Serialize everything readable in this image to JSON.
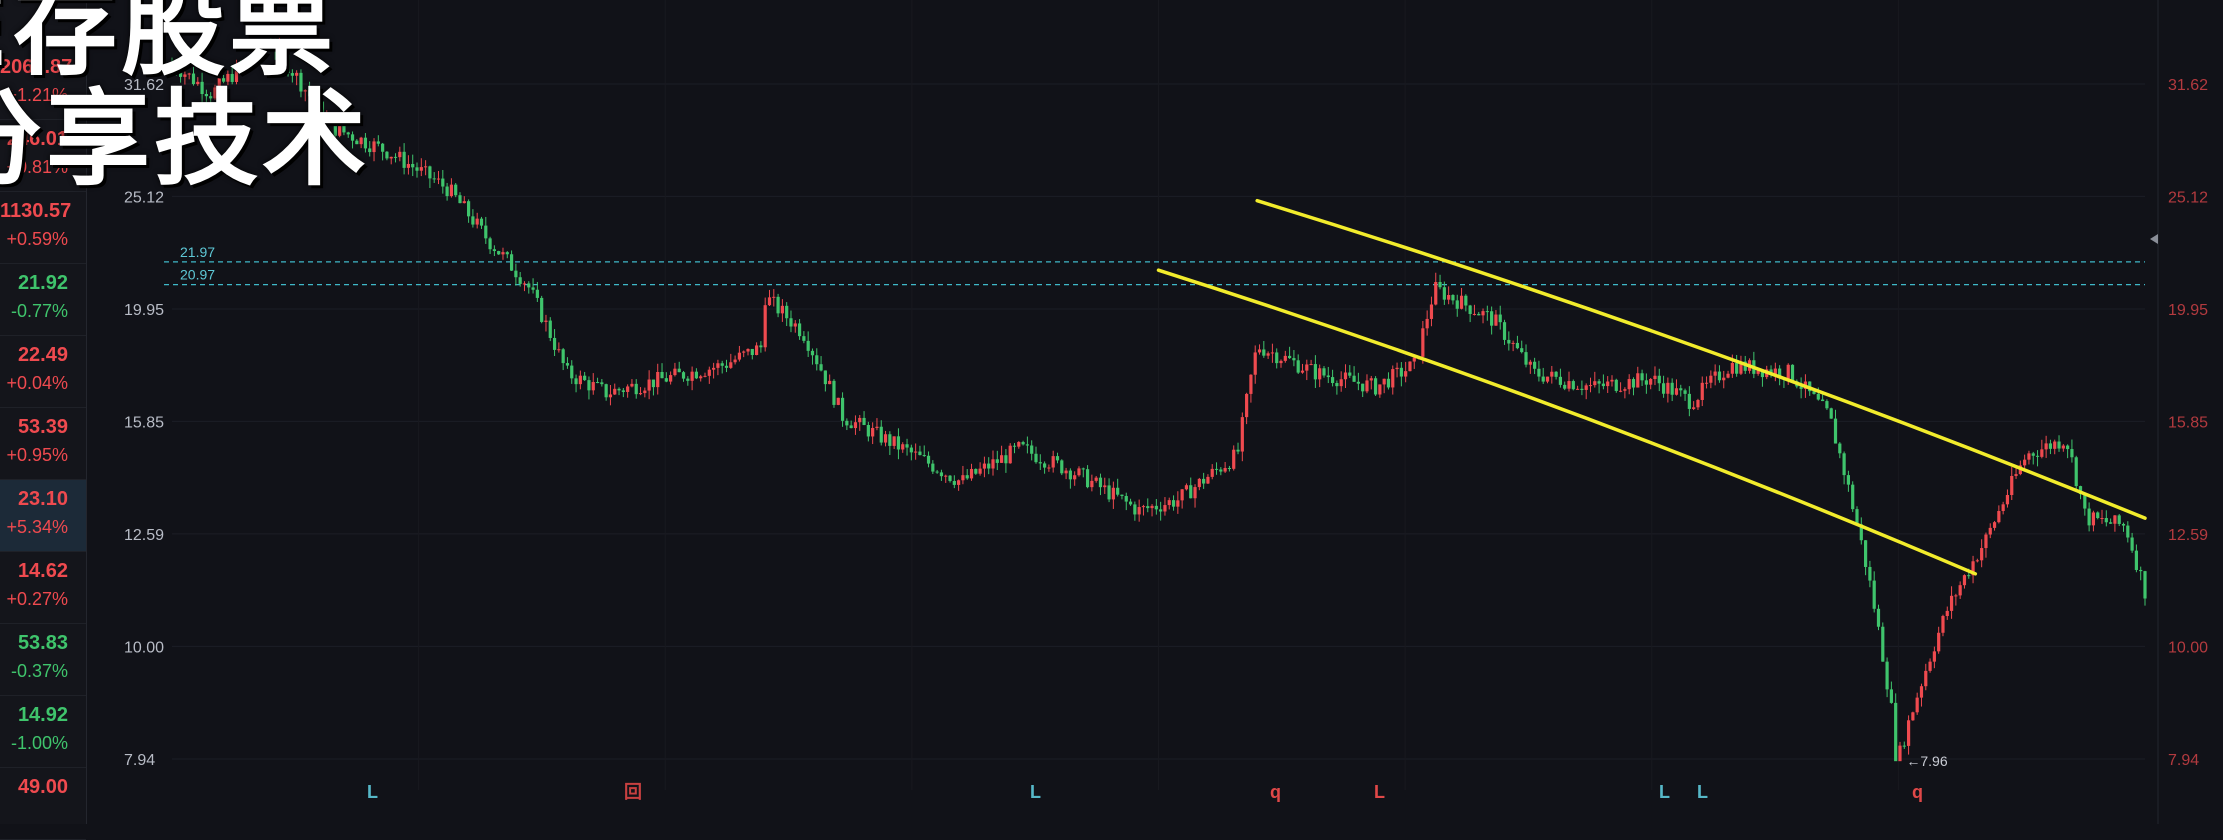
{
  "watchlist": [
    {
      "price": "2061.87",
      "change": "+1.21%",
      "dir": "up"
    },
    {
      "price": "246.01",
      "change": "+0.81%",
      "dir": "up"
    },
    {
      "price": "1130.57",
      "change": "+0.59%",
      "dir": "up"
    },
    {
      "price": "21.92",
      "change": "-0.77%",
      "dir": "down"
    },
    {
      "price": "22.49",
      "change": "+0.04%",
      "dir": "up"
    },
    {
      "price": "53.39",
      "change": "+0.95%",
      "dir": "up"
    },
    {
      "price": "23.10",
      "change": "+5.34%",
      "dir": "up",
      "active": true
    },
    {
      "price": "14.62",
      "change": "+0.27%",
      "dir": "up"
    },
    {
      "price": "53.83",
      "change": "-0.37%",
      "dir": "down"
    },
    {
      "price": "14.92",
      "change": "-1.00%",
      "dir": "down"
    },
    {
      "price": "49.00",
      "change": "",
      "dir": "up"
    }
  ],
  "overlay": {
    "line1": "E存股票",
    "line2": "分享技术"
  },
  "chart": {
    "price_axis": [
      "31.62",
      "25.12",
      "19.95",
      "15.85",
      "12.59",
      "10.00",
      "7.94"
    ],
    "price_axis_values": [
      31.62,
      25.12,
      19.95,
      15.85,
      12.59,
      10.0,
      7.94
    ],
    "ylim": [
      7.94,
      31.62
    ],
    "scale": "log",
    "h_lines": [
      {
        "label": "21.97",
        "value": 21.97
      },
      {
        "label": "20.97",
        "value": 20.97
      }
    ],
    "low_marker": {
      "label": "←7.96",
      "value": 7.96
    },
    "bottom_markers": [
      {
        "label": "L",
        "color": "#56b8c8"
      },
      {
        "label": "回",
        "color": "#c84040"
      },
      {
        "label": "L",
        "color": "#56b8c8"
      },
      {
        "label": "q",
        "color": "#e04848"
      },
      {
        "label": "L",
        "color": "#e04848"
      },
      {
        "label": "L",
        "color": "#56b8c8"
      },
      {
        "label": "L",
        "color": "#56b8c8"
      },
      {
        "label": "q",
        "color": "#e04848"
      }
    ],
    "colors": {
      "up": "#ef4a4f",
      "down": "#3fc46c",
      "trendline": "#f2ec2c",
      "hline": "#3fb8c8"
    }
  },
  "chart_data": {
    "type": "candlestick",
    "scale": "log",
    "ylim": [
      7.94,
      31.62
    ],
    "y_ticks": [
      31.62,
      25.12,
      19.95,
      15.85,
      12.59,
      10.0,
      7.94
    ],
    "reference_lines": [
      21.97,
      20.97
    ],
    "period_low": 7.96,
    "price_path": [
      [
        0,
        33.0
      ],
      [
        0.02,
        31.0
      ],
      [
        0.05,
        34.5
      ],
      [
        0.08,
        29.0
      ],
      [
        0.11,
        27.5
      ],
      [
        0.14,
        25.5
      ],
      [
        0.16,
        23.0
      ],
      [
        0.18,
        21.0
      ],
      [
        0.2,
        17.5
      ],
      [
        0.22,
        16.8
      ],
      [
        0.25,
        17.3
      ],
      [
        0.28,
        17.8
      ],
      [
        0.3,
        18.5
      ],
      [
        0.3,
        20.5
      ],
      [
        0.32,
        19.0
      ],
      [
        0.34,
        16.0
      ],
      [
        0.37,
        15.0
      ],
      [
        0.4,
        14.0
      ],
      [
        0.43,
        15.0
      ],
      [
        0.46,
        14.2
      ],
      [
        0.49,
        13.2
      ],
      [
        0.51,
        13.5
      ],
      [
        0.54,
        14.8
      ],
      [
        0.55,
        18.5
      ],
      [
        0.58,
        17.5
      ],
      [
        0.61,
        17.0
      ],
      [
        0.63,
        17.8
      ],
      [
        0.64,
        20.8
      ],
      [
        0.67,
        19.5
      ],
      [
        0.69,
        17.5
      ],
      [
        0.72,
        17.0
      ],
      [
        0.75,
        17.3
      ],
      [
        0.77,
        16.5
      ],
      [
        0.79,
        17.8
      ],
      [
        0.82,
        17.5
      ],
      [
        0.84,
        16.0
      ],
      [
        0.86,
        11.5
      ],
      [
        0.875,
        7.96
      ],
      [
        0.9,
        10.8
      ],
      [
        0.92,
        12.5
      ],
      [
        0.94,
        14.8
      ],
      [
        0.96,
        15.3
      ],
      [
        0.97,
        13.0
      ],
      [
        0.99,
        12.8
      ],
      [
        1.0,
        11.2
      ]
    ],
    "trendlines": [
      {
        "from": [
          0.5,
          21.6
        ],
        "to": [
          0.914,
          11.6
        ]
      },
      {
        "from": [
          0.55,
          24.9
        ],
        "to": [
          1.0,
          13.0
        ]
      }
    ]
  }
}
